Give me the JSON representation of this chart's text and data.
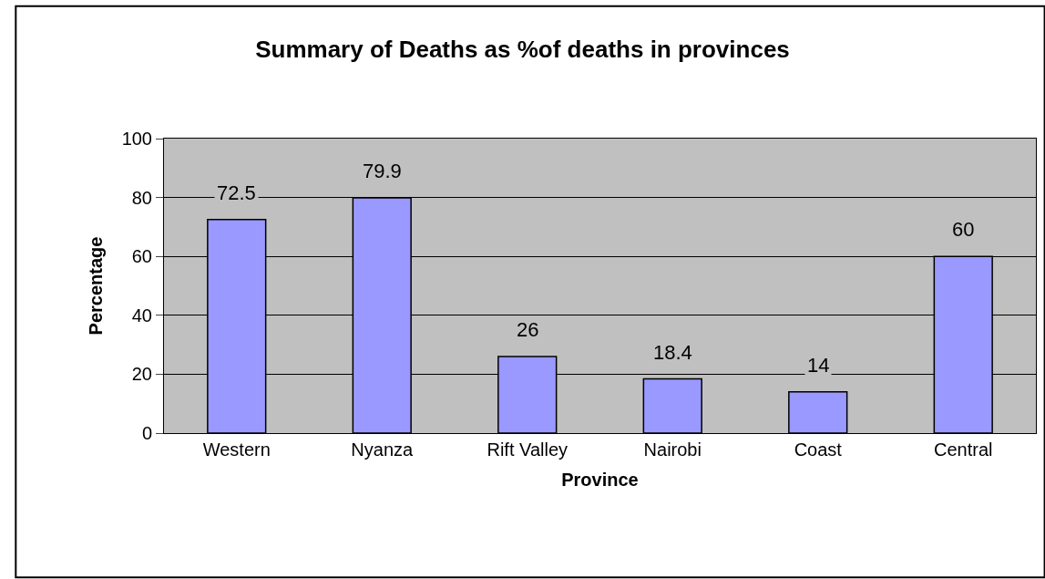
{
  "chart_data": {
    "type": "bar",
    "title": "Summary of Deaths as %of deaths in provinces",
    "xlabel": "Province",
    "ylabel": "Percentage",
    "categories": [
      "Western",
      "Nyanza",
      "Rift Valley",
      "Nairobi",
      "Coast",
      "Central"
    ],
    "values": [
      72.5,
      79.9,
      26,
      18.4,
      14,
      60
    ],
    "color": "#9999ff",
    "ylim": [
      0,
      100
    ],
    "yticks": [
      0,
      20,
      40,
      60,
      80,
      100
    ],
    "grid": "y",
    "data_labels": true,
    "legend": false
  }
}
